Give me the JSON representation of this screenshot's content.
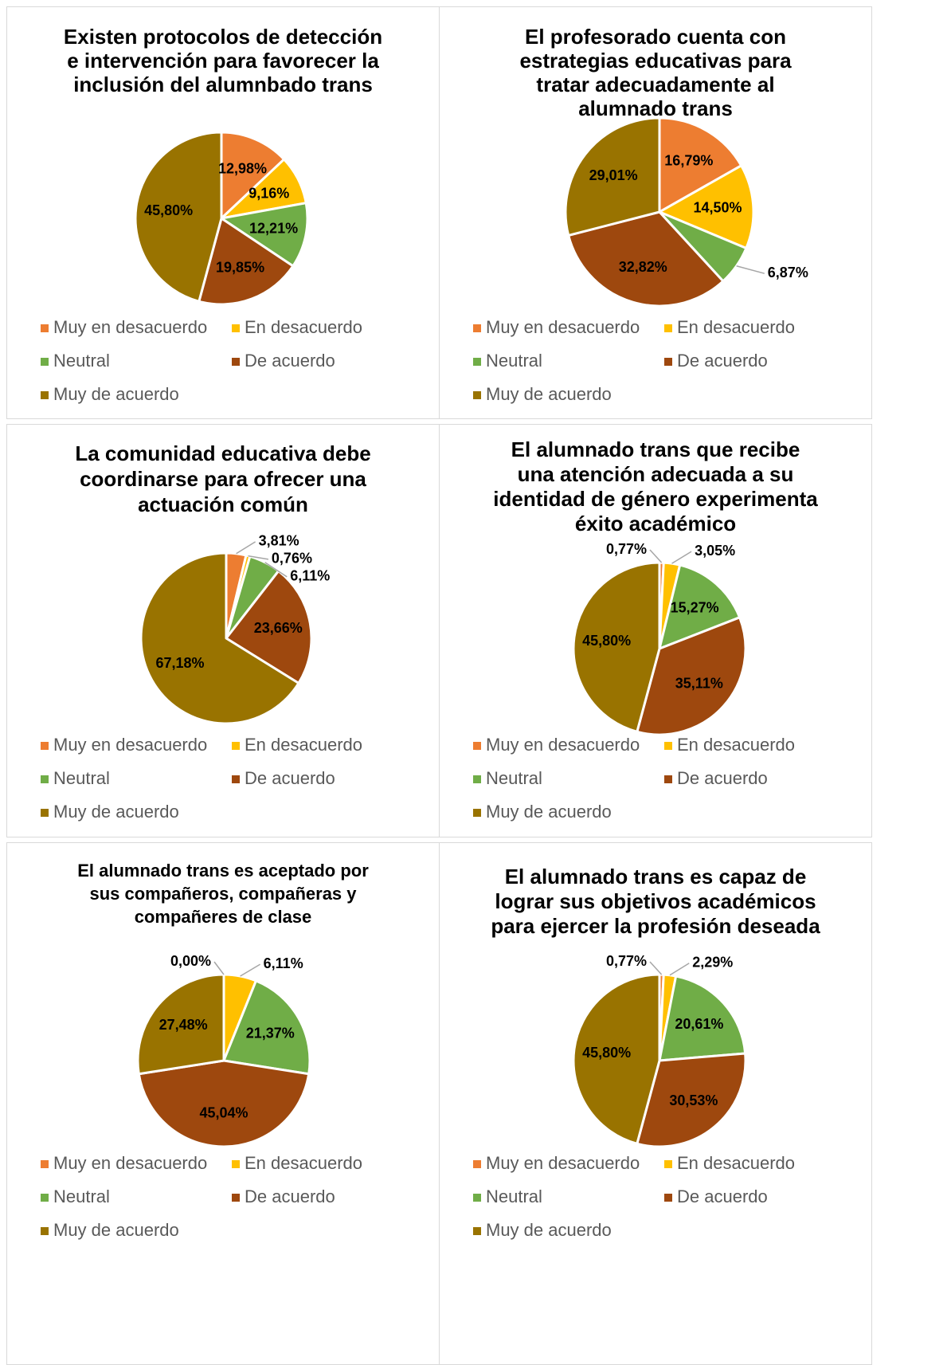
{
  "chart_data": [
    {
      "type": "pie",
      "title": "Existen protocolos de detección\ne intervención para favorecer la\ninclusión del alumnbado trans",
      "categories": [
        "Muy en desacuerdo",
        "En desacuerdo",
        "Neutral",
        "De acuerdo",
        "Muy de acuerdo"
      ],
      "values": [
        12.98,
        9.16,
        12.21,
        19.85,
        45.8
      ],
      "value_labels": [
        "12,98%",
        "9,16%",
        "12,21%",
        "19,85%",
        "45,80%"
      ],
      "colors": [
        "#ED7D31",
        "#FFC000",
        "#70AD47",
        "#9E480E",
        "#997300"
      ]
    },
    {
      "type": "pie",
      "title": "El profesorado cuenta con\nestrategias educativas para\ntratar adecuadamente al\nalumnado trans",
      "categories": [
        "Muy en desacuerdo",
        "En desacuerdo",
        "Neutral",
        "De acuerdo",
        "Muy de acuerdo"
      ],
      "values": [
        16.79,
        14.5,
        6.87,
        32.82,
        29.01
      ],
      "value_labels": [
        "16,79%",
        "14,50%",
        "6,87%",
        "32,82%",
        "29,01%"
      ],
      "colors": [
        "#ED7D31",
        "#FFC000",
        "#70AD47",
        "#9E480E",
        "#997300"
      ]
    },
    {
      "type": "pie",
      "title": "La comunidad educativa debe\ncoordinarse para ofrecer una\nactuación común",
      "categories": [
        "Muy en desacuerdo",
        "En desacuerdo",
        "Neutral",
        "De acuerdo",
        "Muy de acuerdo"
      ],
      "values": [
        3.81,
        0.76,
        6.11,
        23.66,
        67.18
      ],
      "value_labels": [
        "3,81%",
        "0,76%",
        "6,11%",
        "23,66%",
        "67,18%"
      ],
      "colors": [
        "#ED7D31",
        "#FFC000",
        "#70AD47",
        "#9E480E",
        "#997300"
      ]
    },
    {
      "type": "pie",
      "title": "El alumnado trans que recibe\nuna atención adecuada a su\nidentidad de género experimenta\néxito académico",
      "categories": [
        "Muy en desacuerdo",
        "En desacuerdo",
        "Neutral",
        "De acuerdo",
        "Muy de acuerdo"
      ],
      "values": [
        0.77,
        3.05,
        15.27,
        35.11,
        45.8
      ],
      "value_labels": [
        "0,77%",
        "3,05%",
        "15,27%",
        "35,11%",
        "45,80%"
      ],
      "colors": [
        "#ED7D31",
        "#FFC000",
        "#70AD47",
        "#9E480E",
        "#997300"
      ]
    },
    {
      "type": "pie",
      "title": "El alumnado trans es aceptado por\nsus compañeros, compañeras y\ncompañeres de clase",
      "categories": [
        "Muy en desacuerdo",
        "En desacuerdo",
        "Neutral",
        "De acuerdo",
        "Muy de acuerdo"
      ],
      "values": [
        0.0,
        6.11,
        21.37,
        45.04,
        27.48
      ],
      "value_labels": [
        "0,00%",
        "6,11%",
        "21,37%",
        "45,04%",
        "27,48%"
      ],
      "colors": [
        "#ED7D31",
        "#FFC000",
        "#70AD47",
        "#9E480E",
        "#997300"
      ]
    },
    {
      "type": "pie",
      "title": "El alumnado trans es capaz de\nlograr sus objetivos académicos\npara ejercer la profesión deseada",
      "categories": [
        "Muy en desacuerdo",
        "En desacuerdo",
        "Neutral",
        "De acuerdo",
        "Muy de acuerdo"
      ],
      "values": [
        0.77,
        2.29,
        20.61,
        30.53,
        45.8
      ],
      "value_labels": [
        "0,77%",
        "2,29%",
        "20,61%",
        "30,53%",
        "45,80%"
      ],
      "colors": [
        "#ED7D31",
        "#FFC000",
        "#70AD47",
        "#9E480E",
        "#997300"
      ]
    }
  ]
}
